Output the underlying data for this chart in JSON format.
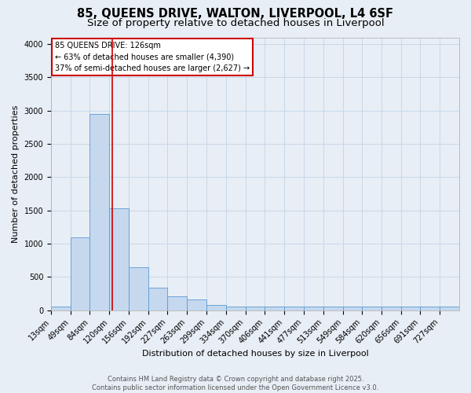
{
  "title_line1": "85, QUEENS DRIVE, WALTON, LIVERPOOL, L4 6SF",
  "title_line2": "Size of property relative to detached houses in Liverpool",
  "xlabel": "Distribution of detached houses by size in Liverpool",
  "ylabel": "Number of detached properties",
  "bin_labels": [
    "13sqm",
    "49sqm",
    "84sqm",
    "120sqm",
    "156sqm",
    "192sqm",
    "227sqm",
    "263sqm",
    "299sqm",
    "334sqm",
    "370sqm",
    "406sqm",
    "441sqm",
    "477sqm",
    "513sqm",
    "549sqm",
    "584sqm",
    "620sqm",
    "656sqm",
    "691sqm",
    "727sqm"
  ],
  "bin_edges": [
    13,
    49,
    84,
    120,
    156,
    192,
    227,
    263,
    299,
    334,
    370,
    406,
    441,
    477,
    513,
    549,
    584,
    620,
    656,
    691,
    727,
    763
  ],
  "bar_heights": [
    55,
    1100,
    2950,
    1530,
    650,
    340,
    205,
    160,
    85,
    55,
    55,
    55,
    55,
    55,
    55,
    55,
    55,
    55,
    55,
    55,
    55
  ],
  "bar_color": "#c5d8ee",
  "bar_edge_color": "#5b9bd5",
  "grid_color": "#c8d8e8",
  "red_line_x": 126,
  "ylim": [
    0,
    4100
  ],
  "yticks": [
    0,
    500,
    1000,
    1500,
    2000,
    2500,
    3000,
    3500,
    4000
  ],
  "annotation_title": "85 QUEENS DRIVE: 126sqm",
  "annotation_line2": "← 63% of detached houses are smaller (4,390)",
  "annotation_line3": "37% of semi-detached houses are larger (2,627) →",
  "annotation_box_color": "#ffffff",
  "annotation_box_edge": "#cc0000",
  "footer_line1": "Contains HM Land Registry data © Crown copyright and database right 2025.",
  "footer_line2": "Contains public sector information licensed under the Open Government Licence v3.0.",
  "background_color": "#e8eef5",
  "title_fontsize": 10.5,
  "subtitle_fontsize": 9.5,
  "axis_label_fontsize": 8,
  "tick_fontsize": 7,
  "footer_fontsize": 6,
  "annotation_fontsize": 7
}
